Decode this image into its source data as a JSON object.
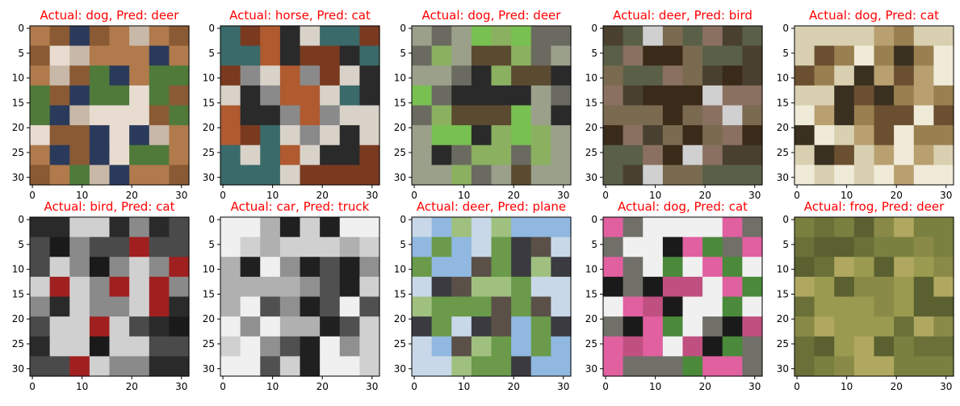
{
  "chart_data": {
    "type": "image_grid",
    "rows": 2,
    "cols": 5,
    "title_color": "#ff0000",
    "xlim": [
      -0.5,
      31.5
    ],
    "ylim": [
      31.5,
      -0.5
    ],
    "xticks": [
      0,
      10,
      20,
      30
    ],
    "yticks": [
      0,
      5,
      10,
      15,
      20,
      25,
      30
    ],
    "panels": [
      {
        "title": "Actual: dog, Pred: deer",
        "actual": "dog",
        "pred": "deer",
        "colors": [
          "#8a5a34",
          "#b07a4c",
          "#c8b8a8",
          "#e8dcd0",
          "#4f7a3a",
          "#2a3a5a"
        ]
      },
      {
        "title": "Actual: horse, Pred: cat",
        "actual": "horse",
        "pred": "cat",
        "colors": [
          "#3a6a6a",
          "#7a3a20",
          "#b05a30",
          "#8a8a8a",
          "#d8d2c8",
          "#2a2a2a"
        ]
      },
      {
        "title": "Actual: dog, Pred: deer",
        "actual": "dog",
        "pred": "deer",
        "colors": [
          "#9aa08a",
          "#6a6a60",
          "#5a4a30",
          "#2a2a2a",
          "#8ab060",
          "#78c050"
        ]
      },
      {
        "title": "Actual: deer, Pred: bird",
        "actual": "deer",
        "pred": "bird",
        "colors": [
          "#5a6048",
          "#4a4030",
          "#3a2a1a",
          "#7a6a50",
          "#d0d0d0",
          "#8a7060"
        ]
      },
      {
        "title": "Actual: dog, Pred: cat",
        "actual": "dog",
        "pred": "cat",
        "colors": [
          "#d8d0b0",
          "#f0ead8",
          "#6a5030",
          "#3a3020",
          "#9a8050",
          "#b8a070"
        ]
      },
      {
        "title": "Actual: bird, Pred: cat",
        "actual": "bird",
        "pred": "cat",
        "colors": [
          "#2a2a2a",
          "#4a4a4a",
          "#8a8a8a",
          "#d0d0d0",
          "#a02020",
          "#1a1a1a"
        ]
      },
      {
        "title": "Actual: car, Pred: truck",
        "actual": "car",
        "pred": "truck",
        "colors": [
          "#f0f0f0",
          "#d0d0d0",
          "#909090",
          "#505050",
          "#202020",
          "#b0b0b0"
        ]
      },
      {
        "title": "Actual: deer, Pred: plane",
        "actual": "deer",
        "pred": "plane",
        "colors": [
          "#90b8e0",
          "#c8d8e8",
          "#3a3a40",
          "#5a5048",
          "#6a9a4a",
          "#a0c080"
        ]
      },
      {
        "title": "Actual: dog, Pred: cat",
        "actual": "dog",
        "pred": "cat",
        "colors": [
          "#707068",
          "#e060a0",
          "#1a1a1a",
          "#f0f0f0",
          "#4a8a3a",
          "#c05080"
        ]
      },
      {
        "title": "Actual: frog, Pred: deer",
        "actual": "frog",
        "pred": "deer",
        "colors": [
          "#6a7038",
          "#7a8040",
          "#8a8a48",
          "#9a9a50",
          "#5a6030",
          "#b0a860"
        ]
      }
    ]
  }
}
